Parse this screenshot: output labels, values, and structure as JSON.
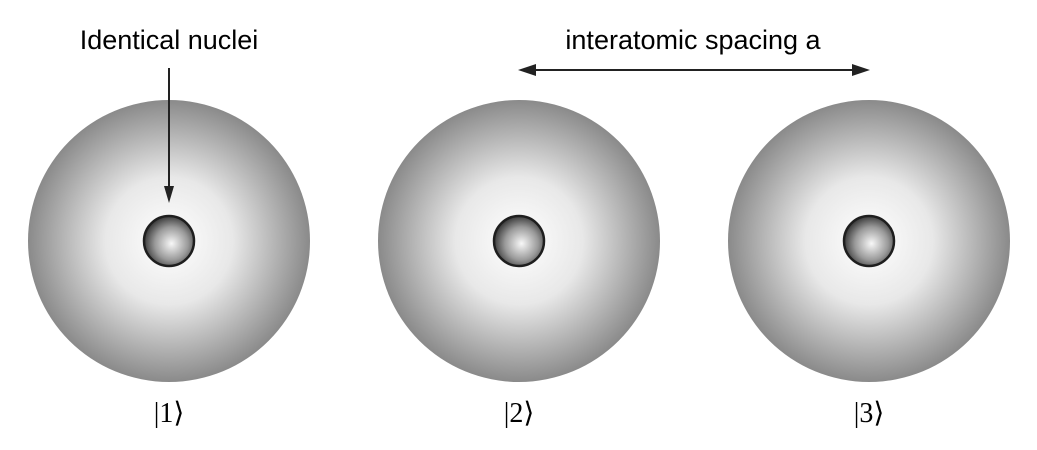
{
  "annotation": {
    "nuclei_label": "Identical nuclei",
    "spacing_label": "interatomic spacing a"
  },
  "atoms": [
    {
      "label": "|1⟩"
    },
    {
      "label": "|2⟩"
    },
    {
      "label": "|3⟩"
    }
  ],
  "colors": {
    "cloud_center": "#ffffff",
    "cloud_edge": "#808080",
    "nucleus_light": "#f5f5f5",
    "nucleus_dark": "#3a3a3a",
    "stroke": "#222222"
  }
}
